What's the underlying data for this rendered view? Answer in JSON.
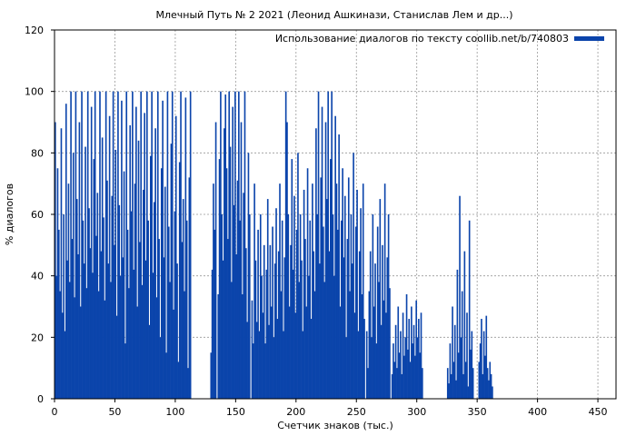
{
  "chart_data": {
    "type": "bar",
    "title": "Млечный Путь № 2 2021 (Леонид Ашкинази, Станислав Лем и др...)",
    "xlabel": "Счетчик знаков (тыс.)",
    "ylabel": "% диалогов",
    "xlim": [
      0,
      465
    ],
    "ylim": [
      0,
      120
    ],
    "x_ticks": [
      0,
      50,
      100,
      150,
      200,
      250,
      300,
      350,
      400,
      450
    ],
    "y_ticks": [
      0,
      20,
      40,
      60,
      80,
      100,
      120
    ],
    "grid": true,
    "legend_position": "top-right",
    "series": [
      {
        "name": "Использование диалогов по тексту coollib.net/b/740803",
        "color": "#0b44ab",
        "x_start": 0,
        "x_step": 1,
        "values": [
          90,
          40,
          75,
          55,
          35,
          88,
          28,
          60,
          22,
          96,
          45,
          70,
          38,
          100,
          52,
          80,
          33,
          100,
          65,
          47,
          90,
          30,
          100,
          58,
          44,
          82,
          36,
          100,
          62,
          49,
          95,
          41,
          78,
          100,
          53,
          67,
          35,
          100,
          48,
          85,
          59,
          32,
          100,
          71,
          44,
          92,
          38,
          66,
          100,
          50,
          81,
          27,
          100,
          63,
          40,
          97,
          46,
          74,
          18,
          100,
          55,
          36,
          89,
          61,
          100,
          42,
          70,
          95,
          30,
          84,
          51,
          100,
          37,
          68,
          93,
          45,
          100,
          58,
          24,
          79,
          100,
          41,
          64,
          88,
          33,
          100,
          52,
          20,
          75,
          97,
          46,
          69,
          15,
          100,
          56,
          38,
          83,
          100,
          29,
          61,
          92,
          44,
          12,
          77,
          100,
          51,
          65,
          35,
          98,
          58,
          10,
          72,
          100,
          0,
          0,
          0,
          0,
          0,
          0,
          0,
          0,
          0,
          0,
          0,
          0,
          0,
          0,
          0,
          0,
          15,
          42,
          70,
          55,
          90,
          0,
          34,
          78,
          100,
          60,
          45,
          88,
          99,
          75,
          52,
          100,
          82,
          38,
          95,
          63,
          100,
          47,
          71,
          100,
          58,
          90,
          34,
          67,
          100,
          49,
          25,
          80,
          60,
          0,
          32,
          18,
          70,
          45,
          25,
          55,
          22,
          60,
          40,
          28,
          50,
          18,
          42,
          65,
          24,
          50,
          30,
          56,
          20,
          44,
          62,
          26,
          48,
          70,
          35,
          58,
          22,
          46,
          100,
          90,
          60,
          30,
          50,
          78,
          42,
          66,
          28,
          55,
          80,
          38,
          60,
          45,
          22,
          68,
          52,
          30,
          75,
          40,
          58,
          26,
          70,
          48,
          35,
          88,
          60,
          100,
          44,
          72,
          95,
          56,
          38,
          90,
          65,
          100,
          48,
          78,
          100,
          60,
          40,
          92,
          70,
          55,
          86,
          30,
          58,
          75,
          46,
          66,
          20,
          52,
          72,
          35,
          60,
          44,
          80,
          28,
          56,
          68,
          22,
          48,
          62,
          34,
          70,
          26,
          0,
          22,
          10,
          35,
          48,
          20,
          60,
          30,
          44,
          18,
          56,
          38,
          65,
          24,
          50,
          32,
          70,
          28,
          46,
          60,
          36,
          0,
          8,
          18,
          12,
          24,
          10,
          30,
          15,
          22,
          8,
          28,
          14,
          20,
          34,
          16,
          26,
          12,
          30,
          18,
          24,
          14,
          32,
          20,
          26,
          15,
          28,
          10,
          0,
          0,
          0,
          0,
          0,
          0,
          0,
          0,
          0,
          0,
          0,
          0,
          0,
          0,
          0,
          0,
          0,
          0,
          0,
          0,
          10,
          5,
          18,
          8,
          30,
          12,
          24,
          6,
          42,
          15,
          66,
          20,
          35,
          8,
          48,
          12,
          28,
          4,
          58,
          16,
          22,
          10,
          0,
          0,
          0,
          0,
          12,
          18,
          26,
          8,
          22,
          14,
          27,
          10,
          6,
          12,
          8,
          4,
          0,
          0,
          0,
          0,
          0,
          0,
          0,
          0,
          0,
          0,
          0,
          0,
          0,
          0,
          0,
          0,
          0,
          0,
          0,
          0,
          0,
          0,
          0,
          0,
          0,
          0,
          0,
          0,
          0,
          0,
          0,
          0,
          0,
          0,
          0,
          0,
          0,
          0,
          0,
          0,
          0,
          0,
          0,
          0,
          0,
          0,
          0,
          0,
          0,
          0,
          0,
          0,
          0,
          0,
          0,
          0,
          0,
          0,
          0,
          0,
          0,
          0,
          0,
          0,
          0,
          0,
          0,
          0,
          0,
          0,
          0,
          0,
          0,
          0,
          0,
          0,
          0,
          0,
          0,
          0,
          0,
          0,
          0
        ]
      }
    ]
  }
}
